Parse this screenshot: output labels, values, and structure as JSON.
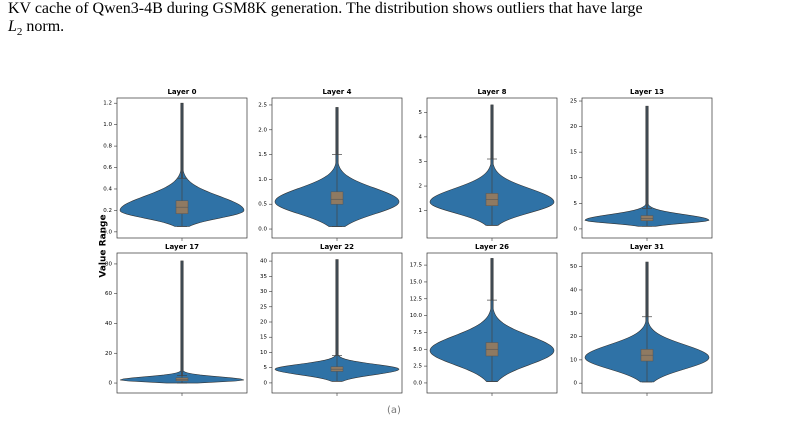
{
  "text": {
    "line1": "KV cache of Qwen3-4B during GSM8K generation. The distribution shows outliers that have large",
    "line2_var": "L",
    "line2_sub": "2",
    "line2_rest": "norm."
  },
  "y_label": "Value Range",
  "caption": "(a)",
  "chart_data": [
    {
      "type": "violin",
      "title": "Layer 0",
      "ylim": [
        -0.02,
        1.23
      ],
      "yticks": [
        {
          "value": 0,
          "label": "0.0"
        },
        0.2,
        0.4,
        0.6,
        0.8,
        {
          "value": 1,
          "label": "1.0"
        },
        1.2
      ],
      "min": 0.05,
      "q1": 0.17,
      "median": 0.23,
      "q3": 0.29,
      "whisker": 0.5,
      "max": 1.2,
      "mode": 0.2,
      "color": "#2f72a6",
      "box_color": "#8f7a62"
    },
    {
      "type": "violin",
      "title": "Layer 4",
      "ylim": [
        -0.1,
        2.6
      ],
      "yticks": [
        {
          "value": 0,
          "label": "0.0"
        },
        0.5,
        {
          "value": 1,
          "label": "1.0"
        },
        1.5,
        {
          "value": 2,
          "label": "2.0"
        },
        2.5
      ],
      "min": 0.05,
      "q1": 0.5,
      "median": 0.6,
      "q3": 0.75,
      "whisker": 1.5,
      "max": 2.45,
      "mode": 0.55,
      "color": "#2f72a6",
      "box_color": "#8f7a62"
    },
    {
      "type": "violin",
      "title": "Layer 8",
      "ylim": [
        0.05,
        5.5
      ],
      "yticks": [
        1,
        2,
        3,
        4,
        5
      ],
      "min": 0.4,
      "q1": 1.2,
      "median": 1.45,
      "q3": 1.7,
      "whisker": 3.1,
      "max": 5.3,
      "mode": 1.35,
      "color": "#2f72a6",
      "box_color": "#8f7a62"
    },
    {
      "type": "violin",
      "title": "Layer 13",
      "ylim": [
        -1,
        25.2
      ],
      "yticks": [
        0,
        5,
        10,
        15,
        20,
        25
      ],
      "min": 0.5,
      "q1": 1.6,
      "median": 2,
      "q3": 2.6,
      "whisker": 4,
      "max": 24,
      "mode": 1.7,
      "color": "#2f72a6",
      "box_color": "#8f7a62"
    },
    {
      "type": "violin",
      "title": "Layer 17",
      "ylim": [
        -4,
        86
      ],
      "yticks": [
        0,
        20,
        40,
        60,
        80
      ],
      "min": 0,
      "q1": 1.5,
      "median": 2.5,
      "q3": 3.5,
      "whisker": 5,
      "max": 82,
      "mode": 2,
      "color": "#2f72a6",
      "box_color": "#8f7a62"
    },
    {
      "type": "violin",
      "title": "Layer 22",
      "ylim": [
        -2,
        42
      ],
      "yticks": [
        0,
        5,
        10,
        15,
        20,
        25,
        30,
        35,
        40
      ],
      "min": 0.5,
      "q1": 3.8,
      "median": 4.5,
      "q3": 5.3,
      "whisker": 9,
      "max": 40.5,
      "mode": 4.5,
      "color": "#2f72a6",
      "box_color": "#8f7a62"
    },
    {
      "type": "violin",
      "title": "Layer 26",
      "ylim": [
        -0.9,
        19
      ],
      "yticks": [
        {
          "value": 0,
          "label": "0.0"
        },
        2.5,
        {
          "value": 5,
          "label": "5.0"
        },
        7.5,
        {
          "value": 10,
          "label": "10.0"
        },
        12.5,
        {
          "value": 15,
          "label": "15.0"
        },
        17.5
      ],
      "min": 0.2,
      "q1": 4,
      "median": 5,
      "q3": 6,
      "whisker": 12.3,
      "max": 18.5,
      "mode": 4.8,
      "color": "#2f72a6",
      "box_color": "#8f7a62"
    },
    {
      "type": "violin",
      "title": "Layer 31",
      "ylim": [
        -2.5,
        55
      ],
      "yticks": [
        0,
        10,
        20,
        30,
        40,
        50
      ],
      "min": 0.5,
      "q1": 9.5,
      "median": 12,
      "q3": 14.5,
      "whisker": 28.5,
      "max": 52,
      "mode": 11,
      "color": "#2f72a6",
      "box_color": "#8f7a62"
    }
  ]
}
